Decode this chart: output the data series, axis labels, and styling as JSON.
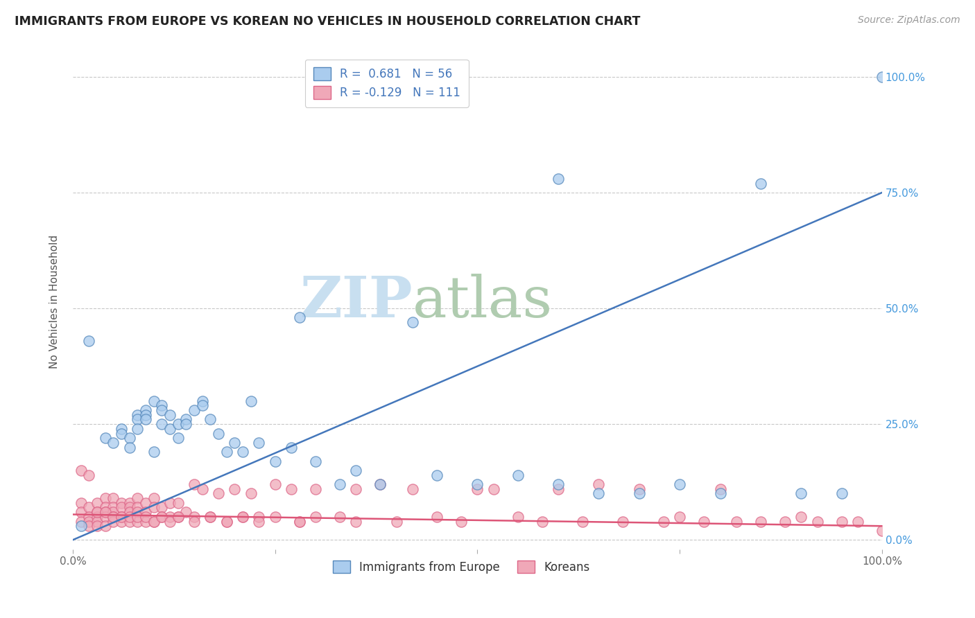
{
  "title": "IMMIGRANTS FROM EUROPE VS KOREAN NO VEHICLES IN HOUSEHOLD CORRELATION CHART",
  "source": "Source: ZipAtlas.com",
  "ylabel": "No Vehicles in Household",
  "xlim": [
    0,
    1.0
  ],
  "ylim": [
    -0.02,
    1.05
  ],
  "ytick_labels": [
    "0.0%",
    "25.0%",
    "50.0%",
    "75.0%",
    "100.0%"
  ],
  "ytick_values": [
    0.0,
    0.25,
    0.5,
    0.75,
    1.0
  ],
  "grid_color": "#c8c8c8",
  "background_color": "#ffffff",
  "watermark_zip": "ZIP",
  "watermark_atlas": "atlas",
  "watermark_color_zip": "#c8dff0",
  "watermark_color_atlas": "#b0ccb0",
  "blue_color": "#aaccee",
  "pink_color": "#f0a8b8",
  "blue_edge_color": "#5588bb",
  "pink_edge_color": "#dd6688",
  "blue_line_color": "#4477bb",
  "pink_line_color": "#dd5577",
  "right_tick_color": "#4499dd",
  "legend_label_europe": "Immigrants from Europe",
  "legend_label_korean": "Koreans",
  "blue_scatter_x": [
    0.01,
    0.02,
    0.04,
    0.05,
    0.06,
    0.06,
    0.07,
    0.07,
    0.08,
    0.08,
    0.08,
    0.09,
    0.09,
    0.09,
    0.1,
    0.1,
    0.11,
    0.11,
    0.11,
    0.12,
    0.12,
    0.13,
    0.13,
    0.14,
    0.14,
    0.15,
    0.16,
    0.16,
    0.17,
    0.18,
    0.19,
    0.2,
    0.21,
    0.22,
    0.23,
    0.25,
    0.27,
    0.28,
    0.3,
    0.33,
    0.35,
    0.38,
    0.42,
    0.45,
    0.5,
    0.55,
    0.6,
    0.65,
    0.7,
    0.75,
    0.8,
    0.85,
    0.9,
    0.95,
    1.0,
    0.6
  ],
  "blue_scatter_y": [
    0.03,
    0.43,
    0.22,
    0.21,
    0.24,
    0.23,
    0.22,
    0.2,
    0.27,
    0.26,
    0.24,
    0.28,
    0.27,
    0.26,
    0.3,
    0.19,
    0.29,
    0.28,
    0.25,
    0.27,
    0.24,
    0.25,
    0.22,
    0.26,
    0.25,
    0.28,
    0.3,
    0.29,
    0.26,
    0.23,
    0.19,
    0.21,
    0.19,
    0.3,
    0.21,
    0.17,
    0.2,
    0.48,
    0.17,
    0.12,
    0.15,
    0.12,
    0.47,
    0.14,
    0.12,
    0.14,
    0.12,
    0.1,
    0.1,
    0.12,
    0.1,
    0.77,
    0.1,
    0.1,
    1.0,
    0.78
  ],
  "pink_scatter_x": [
    0.01,
    0.01,
    0.01,
    0.01,
    0.02,
    0.02,
    0.02,
    0.02,
    0.02,
    0.03,
    0.03,
    0.03,
    0.03,
    0.03,
    0.04,
    0.04,
    0.04,
    0.04,
    0.04,
    0.05,
    0.05,
    0.05,
    0.05,
    0.05,
    0.06,
    0.06,
    0.06,
    0.06,
    0.07,
    0.07,
    0.07,
    0.07,
    0.08,
    0.08,
    0.08,
    0.08,
    0.09,
    0.09,
    0.09,
    0.1,
    0.1,
    0.1,
    0.11,
    0.11,
    0.12,
    0.12,
    0.13,
    0.13,
    0.14,
    0.15,
    0.15,
    0.16,
    0.17,
    0.18,
    0.19,
    0.2,
    0.21,
    0.22,
    0.23,
    0.25,
    0.27,
    0.28,
    0.3,
    0.33,
    0.35,
    0.38,
    0.4,
    0.42,
    0.45,
    0.48,
    0.5,
    0.52,
    0.55,
    0.58,
    0.6,
    0.63,
    0.65,
    0.68,
    0.7,
    0.73,
    0.75,
    0.78,
    0.8,
    0.82,
    0.85,
    0.88,
    0.9,
    0.92,
    0.95,
    0.97,
    1.0,
    0.03,
    0.04,
    0.05,
    0.06,
    0.07,
    0.08,
    0.09,
    0.1,
    0.11,
    0.12,
    0.13,
    0.15,
    0.17,
    0.19,
    0.21,
    0.23,
    0.25,
    0.28,
    0.3,
    0.35
  ],
  "pink_scatter_y": [
    0.15,
    0.08,
    0.06,
    0.04,
    0.14,
    0.07,
    0.05,
    0.04,
    0.03,
    0.08,
    0.06,
    0.05,
    0.04,
    0.03,
    0.09,
    0.07,
    0.06,
    0.05,
    0.03,
    0.09,
    0.07,
    0.06,
    0.05,
    0.04,
    0.08,
    0.07,
    0.05,
    0.04,
    0.08,
    0.07,
    0.06,
    0.04,
    0.09,
    0.07,
    0.06,
    0.04,
    0.08,
    0.06,
    0.04,
    0.09,
    0.07,
    0.04,
    0.07,
    0.05,
    0.08,
    0.05,
    0.08,
    0.05,
    0.06,
    0.12,
    0.05,
    0.11,
    0.05,
    0.1,
    0.04,
    0.11,
    0.05,
    0.1,
    0.05,
    0.12,
    0.11,
    0.04,
    0.11,
    0.05,
    0.11,
    0.12,
    0.04,
    0.11,
    0.05,
    0.04,
    0.11,
    0.11,
    0.05,
    0.04,
    0.11,
    0.04,
    0.12,
    0.04,
    0.11,
    0.04,
    0.05,
    0.04,
    0.11,
    0.04,
    0.04,
    0.04,
    0.05,
    0.04,
    0.04,
    0.04,
    0.02,
    0.06,
    0.06,
    0.05,
    0.05,
    0.05,
    0.05,
    0.05,
    0.04,
    0.05,
    0.04,
    0.05,
    0.04,
    0.05,
    0.04,
    0.05,
    0.04,
    0.05,
    0.04,
    0.05,
    0.04
  ],
  "blue_line_x0": 0.0,
  "blue_line_y0": 0.0,
  "blue_line_x1": 1.0,
  "blue_line_y1": 0.75,
  "pink_line_x0": 0.0,
  "pink_line_y0": 0.055,
  "pink_line_x1": 1.0,
  "pink_line_y1": 0.03
}
